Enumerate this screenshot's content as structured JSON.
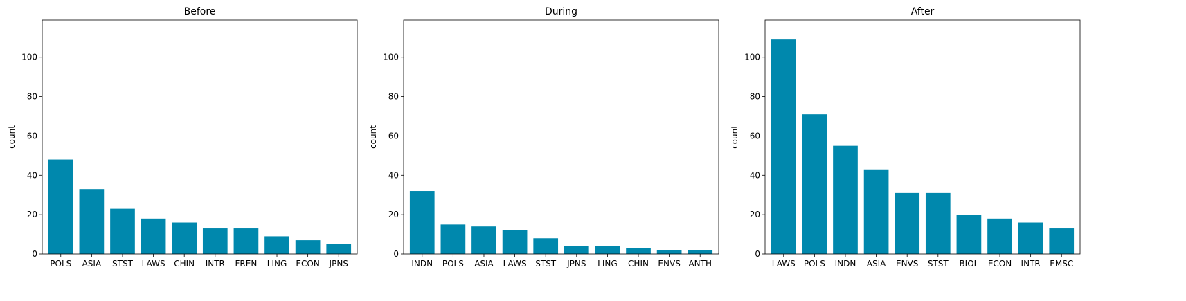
{
  "chart_data": [
    {
      "type": "bar",
      "title": "Before",
      "xlabel": "",
      "ylabel": "count",
      "ylim": [
        0,
        118.9
      ],
      "yticks": [
        0,
        20,
        40,
        60,
        80,
        100
      ],
      "grid": false,
      "color": "#0088AD",
      "categories": [
        "POLS",
        "ASIA",
        "STST",
        "LAWS",
        "CHIN",
        "INTR",
        "FREN",
        "LING",
        "ECON",
        "JPNS"
      ],
      "values": [
        48,
        33,
        23,
        18,
        16,
        13,
        13,
        9,
        7,
        5
      ]
    },
    {
      "type": "bar",
      "title": "During",
      "xlabel": "",
      "ylabel": "count",
      "ylim": [
        0,
        118.9
      ],
      "yticks": [
        0,
        20,
        40,
        60,
        80,
        100
      ],
      "grid": false,
      "color": "#0088AD",
      "categories": [
        "INDN",
        "POLS",
        "ASIA",
        "LAWS",
        "STST",
        "JPNS",
        "LING",
        "CHIN",
        "ENVS",
        "ANTH"
      ],
      "values": [
        32,
        15,
        14,
        12,
        8,
        4,
        4,
        3,
        2,
        2
      ]
    },
    {
      "type": "bar",
      "title": "After",
      "xlabel": "",
      "ylabel": "count",
      "ylim": [
        0,
        118.9
      ],
      "yticks": [
        0,
        20,
        40,
        60,
        80,
        100
      ],
      "grid": false,
      "color": "#0088AD",
      "categories": [
        "LAWS",
        "POLS",
        "INDN",
        "ASIA",
        "ENVS",
        "STST",
        "BIOL",
        "ECON",
        "INTR",
        "EMSC"
      ],
      "values": [
        109,
        71,
        55,
        43,
        31,
        31,
        20,
        18,
        16,
        13
      ]
    }
  ]
}
